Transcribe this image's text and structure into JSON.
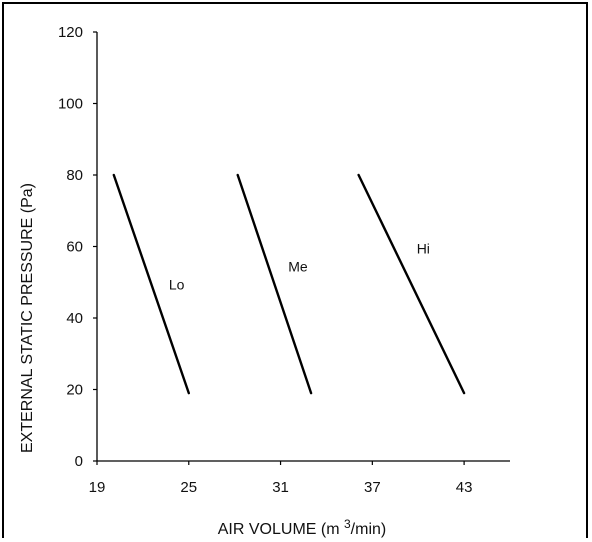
{
  "chart_data": {
    "type": "line",
    "title": "",
    "xlabel": "AIR VOLUME (m 3/min)",
    "xlabel_main": "AIR VOLUME (m ",
    "xlabel_sup": "3",
    "xlabel_tail": "/min)",
    "ylabel": "EXTERNAL STATIC PRESSURE (Pa)",
    "xlim": [
      19,
      46
    ],
    "ylim": [
      0,
      120
    ],
    "xticks": [
      19,
      25,
      31,
      37,
      43
    ],
    "yticks": [
      0,
      20,
      40,
      60,
      80,
      100,
      120
    ],
    "grid": false,
    "series": [
      {
        "name": "Lo",
        "points": [
          [
            20.1,
            80
          ],
          [
            25.0,
            19
          ]
        ],
        "label_at": [
          23.7,
          48
        ]
      },
      {
        "name": "Me",
        "points": [
          [
            28.2,
            80
          ],
          [
            33.0,
            19
          ]
        ],
        "label_at": [
          31.5,
          53
        ]
      },
      {
        "name": "Hi",
        "points": [
          [
            36.1,
            80
          ],
          [
            43.0,
            19
          ]
        ],
        "label_at": [
          39.9,
          58
        ]
      }
    ],
    "line_color": "#000000"
  }
}
